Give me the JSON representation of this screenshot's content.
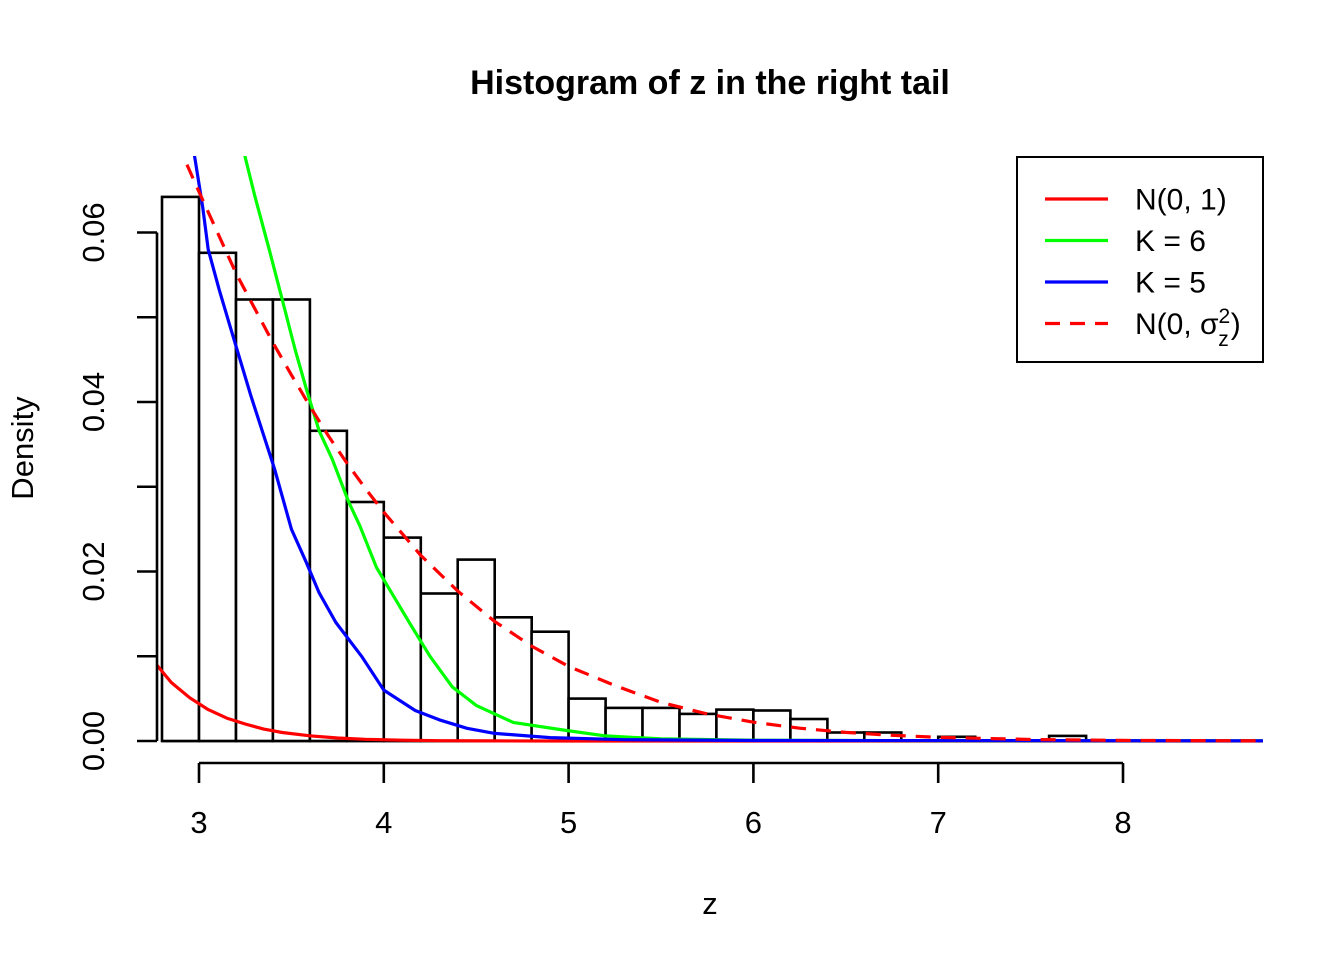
{
  "figure": {
    "title": "Histogram of z in the right tail",
    "xlabel": "z",
    "ylabel": "Density",
    "background": "#FFFFFF",
    "axis_color": "#000000"
  },
  "chart_data": {
    "type": "bar",
    "subtype": "histogram-with-density-curves",
    "title": "Histogram of z in the right tail",
    "xlabel": "z",
    "ylabel": "Density",
    "xlim": [
      2.77,
      8.76
    ],
    "ylim": [
      0,
      0.0694
    ],
    "grid": false,
    "x_ticks": [
      3,
      4,
      5,
      6,
      7,
      8
    ],
    "y_ticks": [
      {
        "v": 0.0,
        "label": "0.00"
      },
      {
        "v": 0.01,
        "label": ""
      },
      {
        "v": 0.02,
        "label": "0.02"
      },
      {
        "v": 0.03,
        "label": ""
      },
      {
        "v": 0.04,
        "label": "0.04"
      },
      {
        "v": 0.05,
        "label": ""
      },
      {
        "v": 0.06,
        "label": "0.06"
      }
    ],
    "histogram": {
      "bin_start": 2.8,
      "bin_width": 0.2,
      "bar_fill": "#FFFFFF",
      "bar_border": "#000000",
      "densities": [
        0.0642,
        0.0576,
        0.0521,
        0.0521,
        0.0366,
        0.0282,
        0.024,
        0.0174,
        0.0214,
        0.0146,
        0.0129,
        0.005,
        0.0039,
        0.0039,
        0.0032,
        0.0037,
        0.0036,
        0.0026,
        0.001,
        0.001,
        0,
        0.0005,
        0,
        0,
        0.0006
      ]
    },
    "series": [
      {
        "id": "n01",
        "name": "N(0, 1)",
        "color": "#FF0000",
        "dashed": false,
        "points": [
          [
            2.77,
            0.009
          ],
          [
            2.85,
            0.0069
          ],
          [
            2.95,
            0.0051
          ],
          [
            3.05,
            0.0037
          ],
          [
            3.15,
            0.0027
          ],
          [
            3.25,
            0.002
          ],
          [
            3.35,
            0.0014
          ],
          [
            3.45,
            0.001
          ],
          [
            3.6,
            0.00061
          ],
          [
            3.75,
            0.00035
          ],
          [
            3.9,
            0.0002
          ],
          [
            4.1,
            9e-05
          ],
          [
            4.3,
            4e-05
          ],
          [
            4.6,
            1e-05
          ],
          [
            5.0,
            4e-06
          ],
          [
            8.76,
            2e-06
          ]
        ]
      },
      {
        "id": "k6",
        "name": "K = 6",
        "color": "#00FF00",
        "dashed": false,
        "points": [
          [
            3.22,
            0.0715
          ],
          [
            3.3,
            0.0645
          ],
          [
            3.38,
            0.058
          ],
          [
            3.45,
            0.0521
          ],
          [
            3.52,
            0.0462
          ],
          [
            3.58,
            0.0416
          ],
          [
            3.65,
            0.0366
          ],
          [
            3.72,
            0.0333
          ],
          [
            3.81,
            0.0282
          ],
          [
            3.87,
            0.0254
          ],
          [
            3.96,
            0.0205
          ],
          [
            4.05,
            0.0172
          ],
          [
            4.14,
            0.0139
          ],
          [
            4.25,
            0.01
          ],
          [
            4.37,
            0.0064
          ],
          [
            4.5,
            0.0042
          ],
          [
            4.7,
            0.0022
          ],
          [
            4.97,
            0.0013
          ],
          [
            5.2,
            0.0006
          ],
          [
            5.5,
            0.00025
          ],
          [
            6.0,
            0.0001
          ],
          [
            7.0,
            4e-05
          ],
          [
            8.76,
            2e-05
          ]
        ]
      },
      {
        "id": "k5",
        "name": "K = 5",
        "color": "#0000FF",
        "dashed": false,
        "points": [
          [
            2.96,
            0.0712
          ],
          [
            3.02,
            0.063
          ],
          [
            3.05,
            0.058
          ],
          [
            3.11,
            0.0532
          ],
          [
            3.17,
            0.0488
          ],
          [
            3.28,
            0.0408
          ],
          [
            3.41,
            0.032
          ],
          [
            3.5,
            0.025
          ],
          [
            3.58,
            0.0211
          ],
          [
            3.65,
            0.0175
          ],
          [
            3.74,
            0.014
          ],
          [
            3.88,
            0.01
          ],
          [
            4.0,
            0.006
          ],
          [
            4.17,
            0.0036
          ],
          [
            4.3,
            0.0025
          ],
          [
            4.45,
            0.0015
          ],
          [
            4.6,
            0.0009
          ],
          [
            4.9,
            0.0004
          ],
          [
            5.3,
            0.00015
          ],
          [
            6.0,
            6e-05
          ],
          [
            8.76,
            2e-05
          ]
        ]
      },
      {
        "id": "n0sz2",
        "name": "N(0, σz²)",
        "color": "#FF0000",
        "dashed": true,
        "label_parts": {
          "prefix": "N(0, σ",
          "sup": "2",
          "sub": "z",
          "suffix": ")"
        },
        "points": [
          [
            2.88,
            0.0707
          ],
          [
            3.0,
            0.0648
          ],
          [
            3.1,
            0.06
          ],
          [
            3.2,
            0.0552
          ],
          [
            3.3,
            0.0511
          ],
          [
            3.4,
            0.047
          ],
          [
            3.5,
            0.0432
          ],
          [
            3.6,
            0.0395
          ],
          [
            3.7,
            0.036
          ],
          [
            3.8,
            0.0328
          ],
          [
            3.9,
            0.0298
          ],
          [
            4.0,
            0.027
          ],
          [
            4.2,
            0.0219
          ],
          [
            4.4,
            0.0177
          ],
          [
            4.6,
            0.0141
          ],
          [
            4.8,
            0.0112
          ],
          [
            5.0,
            0.0088
          ],
          [
            5.25,
            0.00655
          ],
          [
            5.5,
            0.00455
          ],
          [
            5.75,
            0.0032
          ],
          [
            6.0,
            0.00222
          ],
          [
            6.25,
            0.00151
          ],
          [
            6.5,
            0.00102
          ],
          [
            6.75,
            0.00067
          ],
          [
            7.0,
            0.00044
          ],
          [
            7.5,
            0.00018
          ],
          [
            8.0,
            7e-05
          ],
          [
            8.76,
            2e-05
          ]
        ]
      }
    ],
    "legend": {
      "position": "top-right",
      "border_color": "#000000",
      "entries": [
        "N(0, 1)",
        "K = 6",
        "K = 5",
        "N(0, σz²)"
      ]
    }
  }
}
